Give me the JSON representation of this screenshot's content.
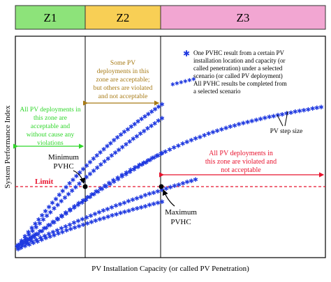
{
  "zones": [
    {
      "label": "Z1",
      "color": "#8de37a"
    },
    {
      "label": "Z2",
      "color": "#f8cf55"
    },
    {
      "label": "Z3",
      "color": "#f2a6d2"
    }
  ],
  "axes": {
    "xlabel": "PV Installation Capacity (or called PV Penetration)",
    "ylabel": "System Performance Index"
  },
  "annotations": {
    "z1_text": [
      "All PV deployments in",
      "this zone are",
      "acceptable and",
      "without cause any",
      "violations"
    ],
    "z2_text": [
      "Some PV",
      "deployments in this",
      "zone are acceptable;",
      "but others are violated",
      "and not acceptable"
    ],
    "z3_text": [
      "All PV deployments in",
      "this zone are violated and",
      "not acceptable"
    ],
    "limit": "Limit",
    "min_pvhc": [
      "Minimum",
      "PVHC"
    ],
    "max_pvhc": [
      "Maximum",
      "PVHC"
    ],
    "step_size": "PV step size"
  },
  "legend": {
    "item1": [
      "One PVHC result from a certain PV",
      "installation location and capacity (or",
      "called penetration) under a selected",
      "scenario (or called PV deployment)"
    ],
    "item2": [
      "All PVHC results be completed from",
      "a selected scenario"
    ]
  },
  "colors": {
    "marker": "#1f39e0",
    "limit": "#e8142f",
    "z1_text": "#2fd62a",
    "z2_text": "#a77a15",
    "z3_text": "#e8142f",
    "axis": "#000000"
  }
}
